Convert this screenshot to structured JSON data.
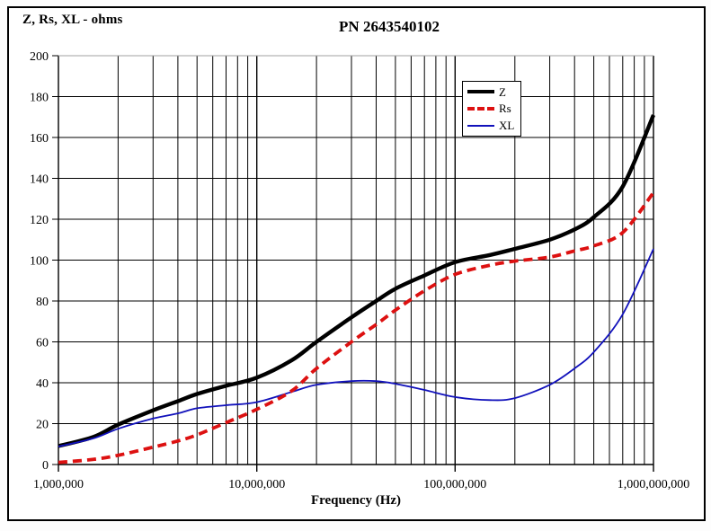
{
  "window": {
    "title": "PN 2643540102 impedance chart"
  },
  "chart_data": {
    "type": "line",
    "title": "PN 2643540102",
    "y_axis_title": "Z, Rs, XL - ohms",
    "xlabel": "Frequency (Hz)",
    "x_scale": "log",
    "x_range_hz": [
      1000000,
      1000000000
    ],
    "ylim": [
      0,
      200
    ],
    "y_ticks": [
      0,
      20,
      40,
      60,
      80,
      100,
      120,
      140,
      160,
      180,
      200
    ],
    "x_tick_values_hz": [
      1000000,
      10000000,
      100000000,
      1000000000
    ],
    "x_tick_labels": [
      "1,000,000",
      "10,000,000",
      "100,000,000",
      "1,000,000,000"
    ],
    "grid": "minor log-x gridlines (2-9 per decade) and major y gridlines every 20, thin black; topmost (200) gridline gray",
    "legend_position": "inside-top-right",
    "x_hz": [
      1000000,
      1500000,
      2000000,
      3000000,
      4000000,
      5000000,
      7000000,
      10000000,
      15000000,
      20000000,
      30000000,
      40000000,
      50000000,
      70000000,
      100000000,
      150000000,
      200000000,
      300000000,
      400000000,
      500000000,
      700000000,
      1000000000
    ],
    "series": [
      {
        "name": "Z",
        "color": "#000000",
        "style": "solid-thick",
        "values": [
          9,
          13.5,
          19.5,
          26.5,
          31,
          34.5,
          38.5,
          42.5,
          51,
          60,
          72,
          80,
          86,
          92.5,
          99,
          102.5,
          105.5,
          110,
          115,
          121,
          136,
          171
        ]
      },
      {
        "name": "Rs",
        "color": "#dd1111",
        "style": "dashed-thick",
        "values": [
          1,
          2.5,
          4.5,
          8.5,
          11.5,
          14.5,
          20.5,
          27,
          36,
          47,
          60,
          68.5,
          75.5,
          85,
          93,
          97.5,
          99.5,
          101.5,
          104.5,
          107,
          113.5,
          133
        ]
      },
      {
        "name": "XL",
        "color": "#1111bb",
        "style": "solid-thin",
        "values": [
          8.8,
          12.8,
          17.5,
          22.5,
          25,
          27.5,
          29,
          30.5,
          35.5,
          39,
          40.8,
          40.8,
          39.5,
          36.5,
          33,
          31.5,
          32.5,
          39,
          47,
          55,
          73.5,
          105.5
        ]
      }
    ]
  },
  "colors": {
    "z_line": "#000000",
    "rs_line": "#dd1111",
    "xl_line": "#1111bb",
    "grid": "#000000",
    "top_gridline": "#a0a0a0",
    "frame_border": "#000000",
    "background": "#ffffff"
  }
}
